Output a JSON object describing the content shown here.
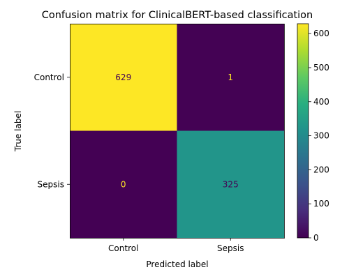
{
  "chart_data": {
    "type": "heatmap",
    "title": "Confusion matrix for ClinicalBERT-based classification",
    "xlabel": "Predicted label",
    "ylabel": "True label",
    "x_categories": [
      "Control",
      "Sepsis"
    ],
    "y_categories": [
      "Control",
      "Sepsis"
    ],
    "values": [
      [
        629,
        1
      ],
      [
        0,
        325
      ]
    ],
    "colormap": "viridis",
    "color_range": [
      0,
      629
    ],
    "colorbar_ticks": [
      0,
      100,
      200,
      300,
      400,
      500,
      600
    ],
    "grid": false
  }
}
